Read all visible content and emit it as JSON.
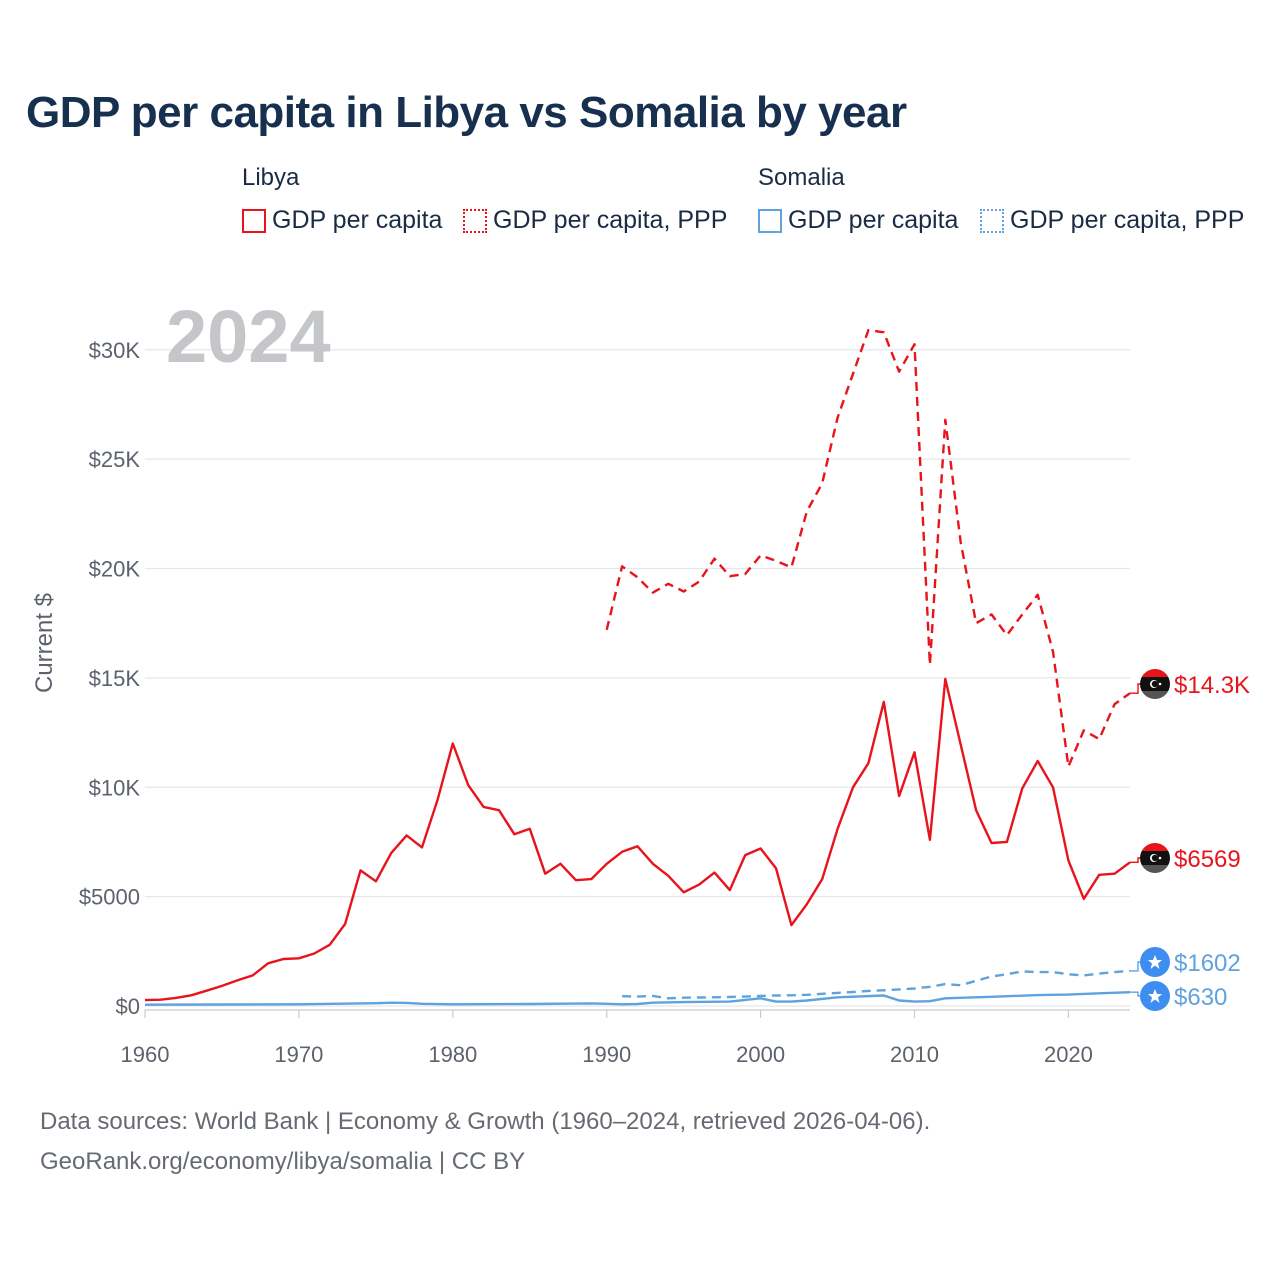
{
  "title": "GDP per capita in Libya vs Somalia by year",
  "legend": {
    "groups": [
      {
        "name": "Libya",
        "color": "#e8141b",
        "items": [
          {
            "label": "GDP per capita",
            "style": "solid"
          },
          {
            "label": "GDP per capita, PPP",
            "style": "dotted"
          }
        ]
      },
      {
        "name": "Somalia",
        "color": "#5fa2de",
        "items": [
          {
            "label": "GDP per capita",
            "style": "solid"
          },
          {
            "label": "GDP per capita, PPP",
            "style": "dotted"
          }
        ]
      }
    ]
  },
  "footer": {
    "line1": "Data sources: World Bank | Economy & Growth (1960–2024, retrieved 2026-04-06).",
    "line2": "GeoRank.org/economy/libya/somalia | CC BY"
  },
  "chart_data": {
    "type": "line",
    "title": "GDP per capita in Libya vs Somalia by year",
    "year_label": "2024",
    "ylabel": "Current $",
    "xlabel": "",
    "xlim": [
      1960,
      2024
    ],
    "ylim": [
      0,
      32000
    ],
    "x_ticks": [
      1960,
      1970,
      1980,
      1990,
      2000,
      2010,
      2020
    ],
    "y_ticks": [
      0,
      5000,
      10000,
      15000,
      20000,
      25000,
      30000
    ],
    "y_tick_labels": [
      "$0",
      "$5000",
      "$10K",
      "$15K",
      "$20K",
      "$25K",
      "$30K"
    ],
    "grid": true,
    "series": [
      {
        "name": "Libya GDP per capita",
        "color": "#e8141b",
        "dash": "solid",
        "end_label": "$6569",
        "badge": "libya",
        "x": [
          1960,
          1961,
          1962,
          1963,
          1964,
          1965,
          1966,
          1967,
          1968,
          1969,
          1970,
          1971,
          1972,
          1973,
          1974,
          1975,
          1976,
          1977,
          1978,
          1979,
          1980,
          1981,
          1982,
          1983,
          1984,
          1985,
          1986,
          1987,
          1988,
          1989,
          1990,
          1991,
          1992,
          1993,
          1994,
          1995,
          1996,
          1997,
          1998,
          1999,
          2000,
          2001,
          2002,
          2003,
          2004,
          2005,
          2006,
          2007,
          2008,
          2009,
          2010,
          2011,
          2012,
          2013,
          2014,
          2015,
          2016,
          2017,
          2018,
          2019,
          2020,
          2021,
          2022,
          2023,
          2024
        ],
        "y": [
          270,
          290,
          370,
          490,
          700,
          920,
          1170,
          1400,
          1950,
          2150,
          2180,
          2400,
          2800,
          3750,
          6200,
          5700,
          7000,
          7800,
          7250,
          9400,
          12000,
          10100,
          9100,
          8950,
          7850,
          8100,
          6050,
          6500,
          5750,
          5800,
          6500,
          7050,
          7300,
          6500,
          5950,
          5200,
          5550,
          6100,
          5300,
          6900,
          7200,
          6300,
          3700,
          4650,
          5800,
          8100,
          10000,
          11100,
          13900,
          9600,
          11600,
          7600,
          14950,
          11950,
          8950,
          7450,
          7500,
          9950,
          11200,
          10000,
          6650,
          4900,
          6000,
          6050,
          6569
        ]
      },
      {
        "name": "Libya GDP per capita, PPP",
        "color": "#e8141b",
        "dash": "dashed",
        "end_label": "$14.3K",
        "badge": "libya",
        "x": [
          1990,
          1991,
          1992,
          1993,
          1994,
          1995,
          1996,
          1997,
          1998,
          1999,
          2000,
          2001,
          2002,
          2003,
          2004,
          2005,
          2006,
          2007,
          2008,
          2009,
          2010,
          2011,
          2012,
          2013,
          2014,
          2015,
          2016,
          2017,
          2018,
          2019,
          2020,
          2021,
          2022,
          2023,
          2024
        ],
        "y": [
          17200,
          20100,
          19600,
          18900,
          19300,
          18950,
          19400,
          20450,
          19650,
          19750,
          20600,
          20350,
          20050,
          22600,
          23900,
          26900,
          28900,
          30900,
          30800,
          29000,
          30250,
          15600,
          26800,
          21200,
          17500,
          17900,
          16950,
          17900,
          18800,
          16200,
          10950,
          12600,
          12200,
          13800,
          14300
        ]
      },
      {
        "name": "Somalia GDP per capita",
        "color": "#5fa2de",
        "dash": "solid",
        "end_label": "$630",
        "badge": "somalia",
        "x": [
          1960,
          1965,
          1970,
          1975,
          1976,
          1977,
          1978,
          1980,
          1985,
          1988,
          1989,
          1990,
          1991,
          1992,
          1993,
          1995,
          1998,
          2000,
          2001,
          2002,
          2003,
          2005,
          2008,
          2009,
          2010,
          2011,
          2012,
          2015,
          2018,
          2020,
          2022,
          2024
        ],
        "y": [
          60,
          70,
          80,
          130,
          150,
          140,
          100,
          80,
          90,
          110,
          120,
          100,
          80,
          90,
          150,
          180,
          200,
          350,
          200,
          200,
          250,
          400,
          480,
          250,
          200,
          220,
          350,
          420,
          500,
          520,
          580,
          630
        ]
      },
      {
        "name": "Somalia GDP per capita, PPP",
        "color": "#5fa2de",
        "dash": "dashed",
        "end_label": "$1602",
        "badge": "somalia",
        "x": [
          1991,
          1992,
          1993,
          1994,
          1995,
          1996,
          1997,
          1998,
          1999,
          2000,
          2001,
          2002,
          2003,
          2004,
          2005,
          2006,
          2007,
          2008,
          2009,
          2010,
          2011,
          2012,
          2013,
          2014,
          2015,
          2016,
          2017,
          2018,
          2019,
          2020,
          2021,
          2022,
          2023,
          2024
        ],
        "y": [
          450,
          430,
          460,
          350,
          380,
          390,
          400,
          410,
          430,
          460,
          480,
          490,
          510,
          560,
          600,
          640,
          690,
          720,
          760,
          800,
          880,
          1000,
          950,
          1150,
          1350,
          1450,
          1580,
          1550,
          1550,
          1450,
          1400,
          1480,
          1550,
          1602
        ]
      }
    ]
  }
}
